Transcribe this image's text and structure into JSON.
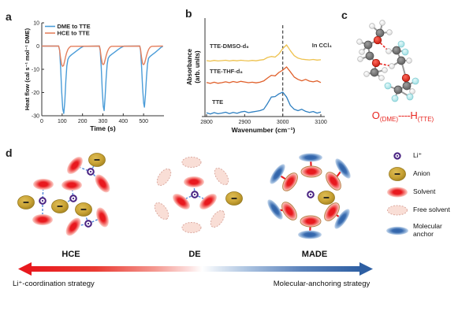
{
  "figure": {
    "panel_labels": {
      "a": "a",
      "b": "b",
      "c": "c",
      "d": "d"
    }
  },
  "chart_data": [
    {
      "panel": "a",
      "type": "line",
      "xlabel": "Time (s)",
      "ylabel": "Heat flow (cal s⁻¹ mol⁻¹ DME)",
      "xlim": [
        0,
        600
      ],
      "ylim": [
        -30,
        10
      ],
      "xticks": [
        0,
        100,
        200,
        300,
        400,
        500
      ],
      "yticks": [
        10,
        0,
        -10,
        -20,
        -30
      ],
      "grid": false,
      "legend_position": "top-left",
      "series": [
        {
          "name": "DME to TTE",
          "color": "#4a9cd8",
          "points": [
            [
              0,
              0
            ],
            [
              83,
              0
            ],
            [
              88,
              -2
            ],
            [
              93,
              -10
            ],
            [
              98,
              -20
            ],
            [
              103,
              -27
            ],
            [
              108,
              -29
            ],
            [
              113,
              -24
            ],
            [
              118,
              -15
            ],
            [
              123,
              -8.5
            ],
            [
              128,
              -5.8
            ],
            [
              135,
              -4.6
            ],
            [
              145,
              -3.8
            ],
            [
              160,
              -2.8
            ],
            [
              175,
              -1.8
            ],
            [
              190,
              -0.8
            ],
            [
              205,
              -0.1
            ],
            [
              283,
              0
            ],
            [
              287,
              -2
            ],
            [
              292,
              -9
            ],
            [
              297,
              -19
            ],
            [
              302,
              -26
            ],
            [
              306,
              -27.8
            ],
            [
              311,
              -22
            ],
            [
              316,
              -14
            ],
            [
              321,
              -8
            ],
            [
              326,
              -5.3
            ],
            [
              333,
              -4.3
            ],
            [
              343,
              -3.6
            ],
            [
              358,
              -2.6
            ],
            [
              373,
              -1.6
            ],
            [
              388,
              -0.7
            ],
            [
              403,
              -0.05
            ],
            [
              481,
              0
            ],
            [
              485,
              -2
            ],
            [
              490,
              -9
            ],
            [
              495,
              -18
            ],
            [
              500,
              -24.5
            ],
            [
              504,
              -26.3
            ],
            [
              509,
              -21
            ],
            [
              514,
              -13.5
            ],
            [
              519,
              -7.8
            ],
            [
              524,
              -5.3
            ],
            [
              531,
              -4.5
            ],
            [
              541,
              -3.8
            ],
            [
              556,
              -2.8
            ],
            [
              571,
              -1.7
            ],
            [
              585,
              -0.6
            ],
            [
              595,
              -0.1
            ]
          ]
        },
        {
          "name": "HCE to TTE",
          "color": "#e4805e",
          "points": [
            [
              0,
              0
            ],
            [
              83,
              0
            ],
            [
              87,
              -1.5
            ],
            [
              92,
              -5
            ],
            [
              97,
              -7.8
            ],
            [
              102,
              -8.7
            ],
            [
              107,
              -8.4
            ],
            [
              112,
              -6.6
            ],
            [
              117,
              -4.6
            ],
            [
              122,
              -2.9
            ],
            [
              128,
              -1.5
            ],
            [
              135,
              -0.6
            ],
            [
              143,
              -0.1
            ],
            [
              283,
              0
            ],
            [
              287,
              -1.5
            ],
            [
              292,
              -5
            ],
            [
              297,
              -7.5
            ],
            [
              301,
              -8
            ],
            [
              306,
              -7.6
            ],
            [
              311,
              -6
            ],
            [
              316,
              -4.2
            ],
            [
              321,
              -2.7
            ],
            [
              327,
              -1.4
            ],
            [
              334,
              -0.5
            ],
            [
              342,
              -0.1
            ],
            [
              481,
              0
            ],
            [
              485,
              -1.5
            ],
            [
              490,
              -5
            ],
            [
              495,
              -7.5
            ],
            [
              499,
              -8
            ],
            [
              504,
              -7.6
            ],
            [
              509,
              -6
            ],
            [
              514,
              -4.2
            ],
            [
              519,
              -2.7
            ],
            [
              525,
              -1.4
            ],
            [
              532,
              -0.5
            ],
            [
              540,
              -0.1
            ],
            [
              595,
              0
            ]
          ]
        }
      ]
    },
    {
      "panel": "b",
      "type": "line",
      "xlabel": "Wavenumber (cm⁻¹)",
      "ylabel_lines": [
        "Absorbance",
        "(arb. units)"
      ],
      "xlim": [
        2800,
        3100
      ],
      "xticks": [
        2800,
        2900,
        3000,
        3100
      ],
      "dashed_line_x": 3000,
      "annotation": "In CCl₄",
      "x_start": 2800,
      "x_step": 10,
      "series": [
        {
          "name": "TTE-DMSO-d₆",
          "color": "#eec24f",
          "values": [
            0.05,
            0.02,
            0.06,
            0.03,
            0.05,
            0.07,
            0.03,
            0.06,
            0.04,
            0.07,
            0.05,
            0.03,
            0.06,
            0.04,
            0.08,
            0.11,
            0.24,
            0.3,
            0.26,
            0.45,
            0.78,
            1.0,
            0.65,
            0.35,
            0.2,
            0.14,
            0.11,
            0.09,
            0.12,
            0.08,
            0.1
          ]
        },
        {
          "name": "TTE-THF-d₈",
          "color": "#e0602b",
          "values": [
            0.1,
            0.05,
            0.12,
            0.06,
            0.09,
            0.14,
            0.09,
            0.16,
            0.11,
            0.17,
            0.13,
            0.09,
            0.12,
            0.08,
            0.12,
            0.19,
            0.36,
            0.52,
            0.48,
            0.68,
            0.82,
            1.0,
            0.72,
            0.42,
            0.28,
            0.2,
            0.28,
            0.18,
            0.14,
            0.2,
            0.1
          ]
        },
        {
          "name": "TTE",
          "color": "#2e7fc1",
          "values": [
            0.06,
            0.01,
            0.07,
            0.02,
            0.05,
            0.09,
            0.03,
            0.08,
            0.04,
            0.1,
            0.13,
            0.07,
            0.1,
            0.13,
            0.16,
            0.22,
            0.48,
            0.78,
            0.8,
            0.92,
            1.0,
            0.78,
            0.4,
            0.22,
            0.16,
            0.22,
            0.13,
            0.08,
            0.12,
            0.05,
            0.1
          ]
        }
      ]
    }
  ],
  "panel_c": {
    "caption": {
      "o": "O",
      "o_sub": "(DME)",
      "dashes": "----",
      "h": "H",
      "h_sub": "(TTE)"
    },
    "atom_colors": {
      "carbon": "#707070",
      "hydrogen": "#f5f5f5",
      "oxygen": "#e0251c",
      "fluorine": "#b8ecee"
    },
    "hbond_color": "#e8251f"
  },
  "panel_d": {
    "groups": [
      {
        "label": "HCE"
      },
      {
        "label": "DE"
      },
      {
        "label": "MADE"
      }
    ],
    "strategy_left": "Li⁺-coordination strategy",
    "strategy_right": "Molecular-anchoring strategy",
    "arrow": {
      "left_color": "#e8191e",
      "right_color": "#2e5fa3"
    },
    "legend": {
      "items": [
        {
          "icon": "li-ion-icon",
          "label": "Li⁺"
        },
        {
          "icon": "anion-icon",
          "label": "Anion"
        },
        {
          "icon": "solvent-icon",
          "label": "Solvent"
        },
        {
          "icon": "free-solvent-icon",
          "label": "Free solvent"
        },
        {
          "icon": "molecular-anchor-icon",
          "label": "Molecular anchor"
        }
      ]
    },
    "colors": {
      "li": "#4b2583",
      "anion": "#c9a335",
      "solvent": "#e8191e",
      "free_solvent": "#f9ded6",
      "anchor": "#3a6cb0",
      "coordination_dash": "#4f86d8"
    }
  }
}
